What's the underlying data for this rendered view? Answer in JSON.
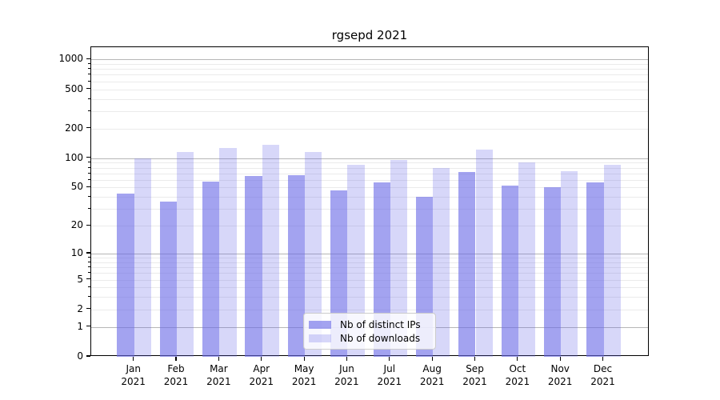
{
  "title": "rgsepd 2021",
  "colors": {
    "bar_base": "#6b6be7",
    "ips_fill": "rgba(107,107,231,0.62)",
    "downloads_fill": "rgba(107,107,231,0.27)",
    "major_grid": "#b6b6b6",
    "minor_grid": "#ebebeb",
    "axis": "#000000",
    "legend_border": "#cccccc"
  },
  "legend": {
    "items": [
      {
        "label": "Nb of distinct IPs",
        "series": "ips"
      },
      {
        "label": "Nb of downloads",
        "series": "downloads"
      }
    ]
  },
  "chart_data": {
    "type": "bar",
    "title": "rgsepd 2021",
    "categories": [
      "Jan 2021",
      "Feb 2021",
      "Mar 2021",
      "Apr 2021",
      "May 2021",
      "Jun 2021",
      "Jul 2021",
      "Aug 2021",
      "Sep 2021",
      "Oct 2021",
      "Nov 2021",
      "Dec 2021"
    ],
    "series": [
      {
        "name": "Nb of distinct IPs",
        "values": [
          43,
          36,
          58,
          66,
          67,
          47,
          57,
          40,
          72,
          52,
          50,
          57
        ]
      },
      {
        "name": "Nb of downloads",
        "values": [
          100,
          115,
          126,
          138,
          116,
          85,
          96,
          79,
          122,
          90,
          73,
          86
        ]
      }
    ],
    "xlabel": "",
    "ylabel": "",
    "y_ticks": [
      0,
      1,
      2,
      5,
      10,
      20,
      50,
      100,
      200,
      500,
      1000
    ],
    "y_scale": "position proportional to log10(1+y)",
    "ylim": [
      0,
      1300
    ],
    "grid": "both",
    "legend_position": "lower center"
  }
}
